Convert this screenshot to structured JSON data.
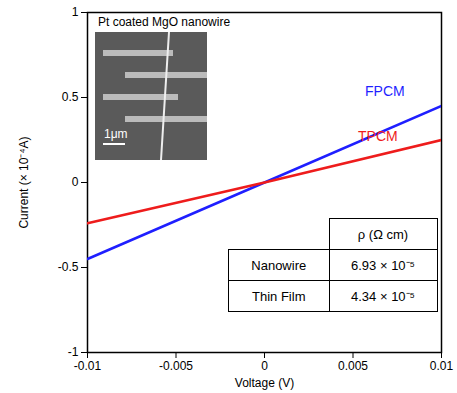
{
  "chart_data": {
    "type": "line",
    "x": [
      -0.01,
      0,
      0.01
    ],
    "series": [
      {
        "name": "FPCM",
        "color": "#1f1fff",
        "values": [
          -0.45,
          0,
          0.45
        ]
      },
      {
        "name": "TPCM",
        "color": "#ee1c1c",
        "values": [
          -0.24,
          0,
          0.25
        ]
      }
    ],
    "xlabel": "Voltage (V)",
    "ylabel": "Current (× 10⁻⁴A)",
    "xlim": [
      -0.01,
      0.01
    ],
    "ylim": [
      -1,
      1
    ],
    "xticks": [
      -0.01,
      -0.005,
      0,
      0.005,
      0.01
    ],
    "yticks": [
      -1,
      -0.5,
      0,
      0.5,
      1
    ],
    "grid": false,
    "inset": {
      "title": "Pt coated MgO nanowire",
      "scale_bar": "1μm"
    },
    "table": {
      "column_header": "ρ (Ω cm)",
      "rows": [
        [
          "Nanowire",
          "6.93 × 10⁻⁵"
        ],
        [
          "Thin Film",
          "4.34 × 10⁻⁵"
        ]
      ]
    }
  }
}
